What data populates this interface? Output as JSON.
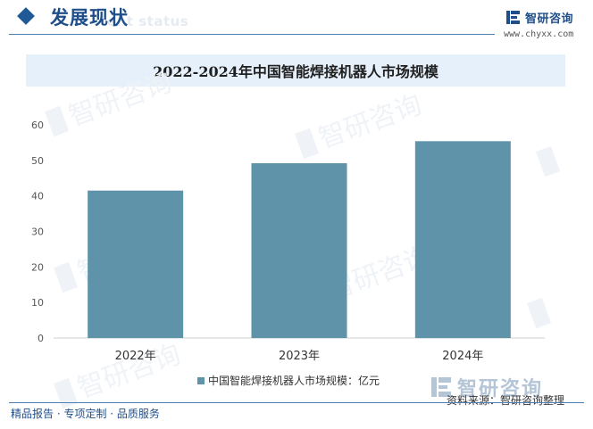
{
  "header": {
    "title": "发展现状",
    "subtitle_faint": "ent status",
    "logo_text": "智研咨询",
    "url": "www.chyxx.com"
  },
  "colors": {
    "bar": "#5f93aa",
    "brand": "#1f4f8a",
    "band": "#e6f0fa"
  },
  "chart_data": {
    "type": "bar",
    "title": "2022-2024年中国智能焊接机器人市场规模",
    "categories": [
      "2022年",
      "2023年",
      "2024年"
    ],
    "series": [
      {
        "name": "中国智能焊接机器人市场规模：亿元",
        "values": [
          41.5,
          49.2,
          55.4
        ]
      }
    ],
    "yticks": [
      "0",
      "10",
      "20",
      "30",
      "40",
      "50",
      "60"
    ],
    "ylim": [
      0,
      60
    ],
    "xlabel": "",
    "ylabel": "",
    "grid": false,
    "legend": "bottom"
  },
  "source": {
    "logo_text": "智研咨询",
    "label": "资料来源：智研咨询整理"
  },
  "footer": {
    "text": "精品报告 · 专项定制 · 品质服务"
  }
}
